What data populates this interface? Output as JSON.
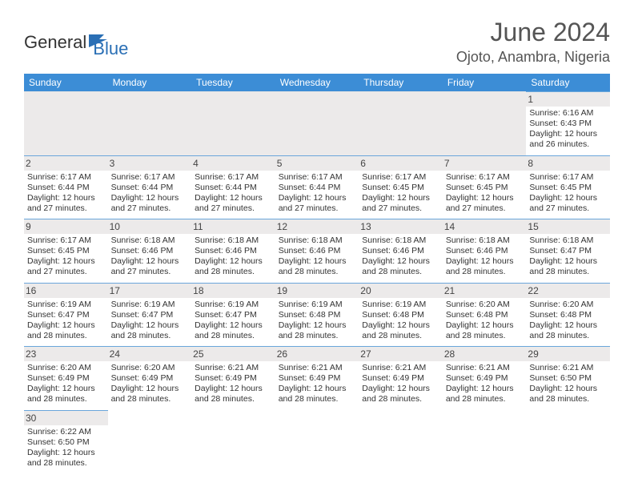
{
  "logo": {
    "text1": "General",
    "text2": "Blue"
  },
  "header": {
    "title": "June 2024",
    "location": "Ojoto, Anambra, Nigeria"
  },
  "colors": {
    "header_bg": "#3c8dd6",
    "accent": "#2a6fb5"
  },
  "dayNames": [
    "Sunday",
    "Monday",
    "Tuesday",
    "Wednesday",
    "Thursday",
    "Friday",
    "Saturday"
  ],
  "calendar": {
    "type": "table",
    "firstDayOffset": 6,
    "daysInMonth": 30,
    "days": {
      "1": {
        "sunrise": "6:16 AM",
        "sunset": "6:43 PM",
        "daylight": "12 hours and 26 minutes."
      },
      "2": {
        "sunrise": "6:17 AM",
        "sunset": "6:44 PM",
        "daylight": "12 hours and 27 minutes."
      },
      "3": {
        "sunrise": "6:17 AM",
        "sunset": "6:44 PM",
        "daylight": "12 hours and 27 minutes."
      },
      "4": {
        "sunrise": "6:17 AM",
        "sunset": "6:44 PM",
        "daylight": "12 hours and 27 minutes."
      },
      "5": {
        "sunrise": "6:17 AM",
        "sunset": "6:44 PM",
        "daylight": "12 hours and 27 minutes."
      },
      "6": {
        "sunrise": "6:17 AM",
        "sunset": "6:45 PM",
        "daylight": "12 hours and 27 minutes."
      },
      "7": {
        "sunrise": "6:17 AM",
        "sunset": "6:45 PM",
        "daylight": "12 hours and 27 minutes."
      },
      "8": {
        "sunrise": "6:17 AM",
        "sunset": "6:45 PM",
        "daylight": "12 hours and 27 minutes."
      },
      "9": {
        "sunrise": "6:17 AM",
        "sunset": "6:45 PM",
        "daylight": "12 hours and 27 minutes."
      },
      "10": {
        "sunrise": "6:18 AM",
        "sunset": "6:46 PM",
        "daylight": "12 hours and 27 minutes."
      },
      "11": {
        "sunrise": "6:18 AM",
        "sunset": "6:46 PM",
        "daylight": "12 hours and 28 minutes."
      },
      "12": {
        "sunrise": "6:18 AM",
        "sunset": "6:46 PM",
        "daylight": "12 hours and 28 minutes."
      },
      "13": {
        "sunrise": "6:18 AM",
        "sunset": "6:46 PM",
        "daylight": "12 hours and 28 minutes."
      },
      "14": {
        "sunrise": "6:18 AM",
        "sunset": "6:46 PM",
        "daylight": "12 hours and 28 minutes."
      },
      "15": {
        "sunrise": "6:18 AM",
        "sunset": "6:47 PM",
        "daylight": "12 hours and 28 minutes."
      },
      "16": {
        "sunrise": "6:19 AM",
        "sunset": "6:47 PM",
        "daylight": "12 hours and 28 minutes."
      },
      "17": {
        "sunrise": "6:19 AM",
        "sunset": "6:47 PM",
        "daylight": "12 hours and 28 minutes."
      },
      "18": {
        "sunrise": "6:19 AM",
        "sunset": "6:47 PM",
        "daylight": "12 hours and 28 minutes."
      },
      "19": {
        "sunrise": "6:19 AM",
        "sunset": "6:48 PM",
        "daylight": "12 hours and 28 minutes."
      },
      "20": {
        "sunrise": "6:19 AM",
        "sunset": "6:48 PM",
        "daylight": "12 hours and 28 minutes."
      },
      "21": {
        "sunrise": "6:20 AM",
        "sunset": "6:48 PM",
        "daylight": "12 hours and 28 minutes."
      },
      "22": {
        "sunrise": "6:20 AM",
        "sunset": "6:48 PM",
        "daylight": "12 hours and 28 minutes."
      },
      "23": {
        "sunrise": "6:20 AM",
        "sunset": "6:49 PM",
        "daylight": "12 hours and 28 minutes."
      },
      "24": {
        "sunrise": "6:20 AM",
        "sunset": "6:49 PM",
        "daylight": "12 hours and 28 minutes."
      },
      "25": {
        "sunrise": "6:21 AM",
        "sunset": "6:49 PM",
        "daylight": "12 hours and 28 minutes."
      },
      "26": {
        "sunrise": "6:21 AM",
        "sunset": "6:49 PM",
        "daylight": "12 hours and 28 minutes."
      },
      "27": {
        "sunrise": "6:21 AM",
        "sunset": "6:49 PM",
        "daylight": "12 hours and 28 minutes."
      },
      "28": {
        "sunrise": "6:21 AM",
        "sunset": "6:49 PM",
        "daylight": "12 hours and 28 minutes."
      },
      "29": {
        "sunrise": "6:21 AM",
        "sunset": "6:50 PM",
        "daylight": "12 hours and 28 minutes."
      },
      "30": {
        "sunrise": "6:22 AM",
        "sunset": "6:50 PM",
        "daylight": "12 hours and 28 minutes."
      }
    }
  },
  "labels": {
    "sunrise": "Sunrise: ",
    "sunset": "Sunset: ",
    "daylight": "Daylight: "
  }
}
